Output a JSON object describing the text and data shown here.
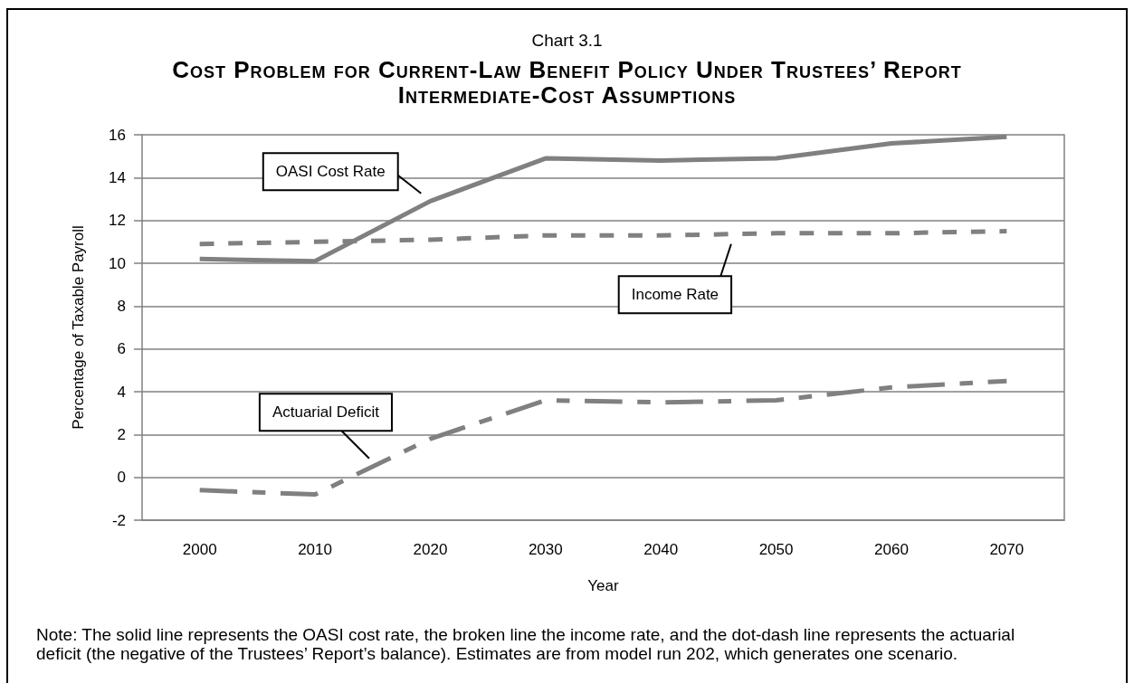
{
  "chart_data": {
    "type": "line",
    "title": "Chart 3.1",
    "subtitle": "Cost Problem for Current-Law Benefit Policy Under Trustees’ Report Intermediate-Cost Assumptions",
    "xlabel": "Year",
    "ylabel": "Percentage of Taxable Payroll",
    "categories": [
      "2000",
      "2010",
      "2020",
      "2030",
      "2040",
      "2050",
      "2060",
      "2070"
    ],
    "series": [
      {
        "name": "OASI Cost Rate",
        "color": "#808080",
        "line_style": "solid",
        "values": [
          10.2,
          10.1,
          12.9,
          14.9,
          14.8,
          14.9,
          15.6,
          15.9
        ]
      },
      {
        "name": "Income Rate",
        "color": "#808080",
        "line_style": "dashed",
        "values": [
          10.9,
          11.0,
          11.1,
          11.3,
          11.3,
          11.4,
          11.4,
          11.5
        ]
      },
      {
        "name": "Actuarial Deficit",
        "color": "#808080",
        "line_style": "dashed",
        "values": [
          -0.6,
          -0.8,
          1.8,
          3.6,
          3.5,
          3.6,
          4.2,
          4.5
        ]
      }
    ],
    "ylim": [
      -2,
      16
    ],
    "yticks": [
      -2,
      0,
      2,
      4,
      6,
      8,
      10,
      12,
      14,
      16
    ],
    "grid": "y",
    "annotations": [
      "Note: The solid line represents the OASI cost rate, the broken line the income rate, and the dot-dash line represents the actuarial deficit (the negative of the Trustees’ Report’s balance). Estimates are from model run 202, which generates one scenario."
    ]
  }
}
